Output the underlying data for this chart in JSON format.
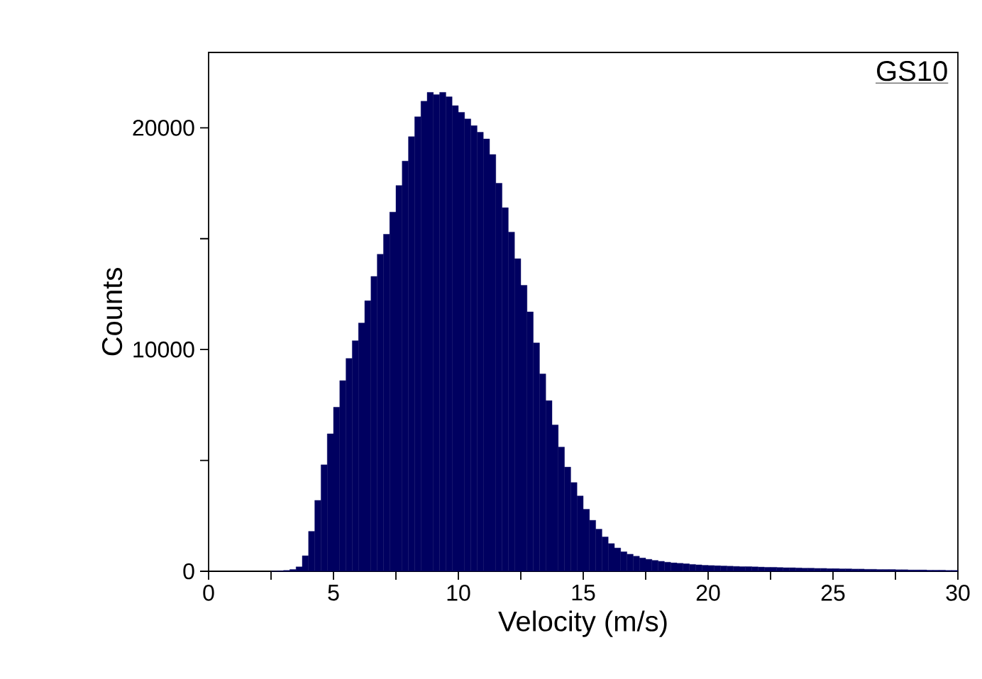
{
  "chart_data": {
    "type": "histogram",
    "xlabel": "Velocity (m/s)",
    "ylabel": "Counts",
    "annotations": [
      "GS10"
    ],
    "color": "#000060",
    "bins": [
      2.5,
      2.75,
      3,
      3.25,
      3.5,
      3.75,
      4,
      4.25,
      4.5,
      4.75,
      5,
      5.25,
      5.5,
      5.75,
      6,
      6.25,
      6.5,
      6.75,
      7,
      7.25,
      7.5,
      7.75,
      8,
      8.25,
      8.5,
      8.75,
      9,
      9.25,
      9.5,
      9.75,
      10,
      10.25,
      10.5,
      10.75,
      11,
      11.25,
      11.5,
      11.75,
      12,
      12.25,
      12.5,
      12.75,
      13,
      13.25,
      13.5,
      13.75,
      14,
      14.25,
      14.5,
      14.75,
      15,
      15.25,
      15.5,
      15.75,
      16,
      16.25,
      16.5,
      16.75,
      17,
      17.25,
      17.5,
      17.75,
      18,
      18.25,
      18.5,
      18.75,
      19,
      19.25,
      19.5,
      19.75,
      20,
      20.25,
      20.5,
      20.75,
      21,
      21.25,
      21.5,
      21.75,
      22,
      22.25,
      22.5,
      22.75,
      23,
      23.25,
      23.5,
      23.75,
      24,
      24.25,
      24.5,
      24.75,
      25,
      25.25,
      25.5,
      25.75,
      26,
      26.25,
      26.5,
      26.75,
      27,
      27.25,
      27.5,
      27.75,
      28,
      28.25,
      28.5,
      28.75,
      29,
      29.25,
      29.5,
      29.75,
      30
    ],
    "values": [
      0,
      20,
      40,
      80,
      200,
      700,
      1800,
      3200,
      4800,
      6200,
      7400,
      8600,
      9600,
      10400,
      11200,
      12200,
      13300,
      14300,
      15200,
      16200,
      17400,
      18500,
      19600,
      20500,
      21200,
      21600,
      21500,
      21600,
      21400,
      21000,
      20700,
      20400,
      20100,
      19800,
      19500,
      18800,
      17500,
      16400,
      15300,
      14100,
      12900,
      11700,
      10300,
      8900,
      7700,
      6600,
      5600,
      4700,
      4000,
      3400,
      2800,
      2300,
      1900,
      1550,
      1250,
      1050,
      880,
      770,
      680,
      600,
      540,
      490,
      450,
      410,
      380,
      360,
      340,
      310,
      290,
      270,
      260,
      250,
      240,
      230,
      220,
      210,
      210,
      200,
      190,
      180,
      180,
      170,
      160,
      160,
      150,
      140,
      140,
      130,
      130,
      120,
      120,
      110,
      110,
      100,
      100,
      90,
      90,
      80,
      80,
      80,
      70,
      70,
      60,
      60,
      60,
      50,
      50,
      50,
      40,
      40
    ],
    "xlim": [
      0,
      30
    ],
    "ylim": [
      0,
      23400
    ],
    "xticks": [
      0,
      {
        "value": 2.5,
        "label": null
      },
      5,
      {
        "value": 7.5,
        "label": null
      },
      10,
      {
        "value": 12.5,
        "label": null
      },
      15,
      {
        "value": 17.5,
        "label": null
      },
      20,
      {
        "value": 22.5,
        "label": null
      },
      25,
      {
        "value": 27.5,
        "label": null
      },
      30
    ],
    "yticks": [
      0,
      {
        "value": 5000,
        "label": null
      },
      10000,
      {
        "value": 15000,
        "label": null
      },
      20000
    ],
    "grid": false
  }
}
